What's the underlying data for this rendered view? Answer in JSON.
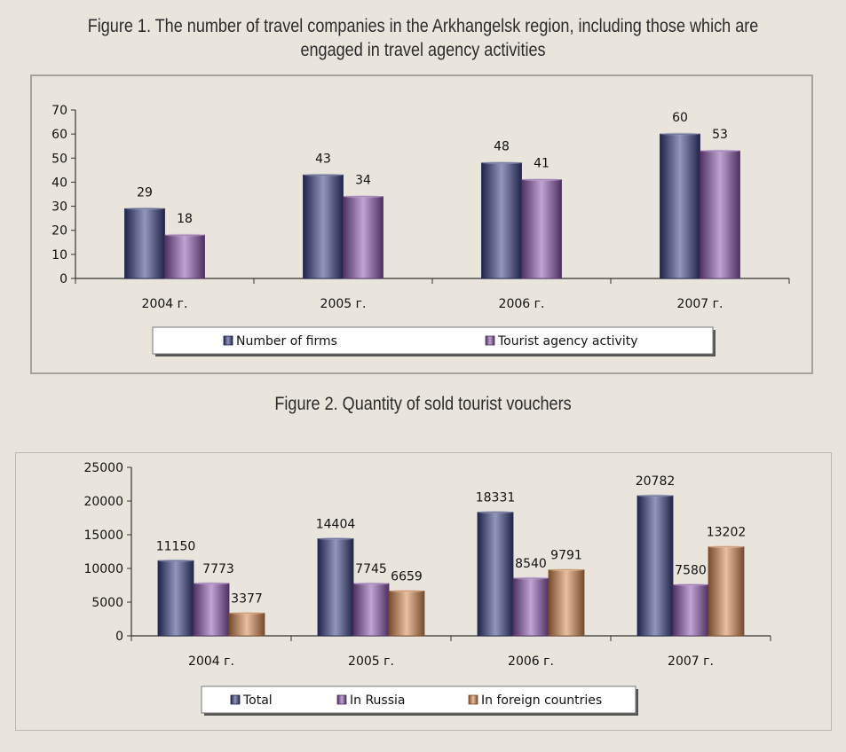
{
  "figure1_title_line1": "Figure 1. The number of travel companies in the Arkhangelsk region, including those which are",
  "figure1_title_line2": "engaged in travel agency activities",
  "figure2_title": "Figure 2. Quantity of sold tourist vouchers",
  "colors": {
    "navy": "#3a4283",
    "violet": "#8e59b0",
    "orange": "#d98a50"
  },
  "chart_data": [
    {
      "type": "bar",
      "title": "Figure 1. The number of travel companies in the Arkhangelsk region, including those which are engaged in travel agency activities",
      "categories": [
        "2004 г.",
        "2005 г.",
        "2006 г.",
        "2007 г."
      ],
      "series": [
        {
          "name": "Number of firms",
          "values": [
            29,
            43,
            48,
            60
          ]
        },
        {
          "name": "Tourist agency activity",
          "values": [
            18,
            34,
            41,
            53
          ]
        }
      ],
      "ylim": [
        0,
        70
      ],
      "yticks": [
        0,
        10,
        20,
        30,
        40,
        50,
        60,
        70
      ],
      "grid": false,
      "legend": "bottom"
    },
    {
      "type": "bar",
      "title": "Figure 2. Quantity of sold tourist vouchers",
      "categories": [
        "2004 г.",
        "2005 г.",
        "2006 г.",
        "2007 г."
      ],
      "series": [
        {
          "name": "Total",
          "values": [
            11150,
            14404,
            18331,
            20782
          ]
        },
        {
          "name": "In Russia",
          "values": [
            7773,
            7745,
            8540,
            7580
          ]
        },
        {
          "name": "In foreign countries",
          "values": [
            3377,
            6659,
            9791,
            13202
          ]
        }
      ],
      "ylim": [
        0,
        25000
      ],
      "yticks": [
        0,
        5000,
        10000,
        15000,
        20000,
        25000
      ],
      "grid": false,
      "legend": "bottom"
    }
  ]
}
